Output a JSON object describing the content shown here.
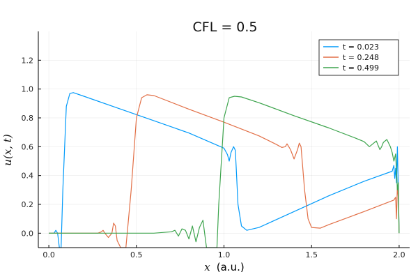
{
  "chart_data": {
    "type": "line",
    "title": "CFL = 0.5",
    "xlabel_var": "x",
    "xlabel_unit": "(a.u.)",
    "ylabel": "u(x, t)",
    "xlim": [
      -0.06,
      2.06
    ],
    "ylim": [
      -0.1,
      1.4
    ],
    "xticks": [
      0.0,
      0.5,
      1.0,
      1.5,
      2.0
    ],
    "xtick_labels": [
      "0.0",
      "0.5",
      "1.0",
      "1.5",
      "2.0"
    ],
    "yticks": [
      0.0,
      0.2,
      0.4,
      0.6,
      0.8,
      1.0,
      1.2
    ],
    "ytick_labels": [
      "0.0",
      "0.2",
      "0.4",
      "0.6",
      "0.8",
      "1.0",
      "1.2"
    ],
    "grid": true,
    "legend_position": "top-right",
    "series": [
      {
        "name": "t = 0.023",
        "color": "#009AFA",
        "x": [
          0.0,
          0.03,
          0.04,
          0.05,
          0.06,
          0.07,
          0.08,
          0.1,
          0.12,
          0.14,
          0.2,
          0.4,
          0.6,
          0.8,
          1.0,
          1.02,
          1.03,
          1.04,
          1.055,
          1.065,
          1.07,
          1.08,
          1.1,
          1.13,
          1.2,
          1.4,
          1.6,
          1.8,
          1.96,
          1.97,
          1.975,
          1.98,
          1.985,
          1.99,
          1.995,
          2.0
        ],
        "y": [
          0.0,
          0.0,
          0.02,
          0.0,
          -0.1,
          -0.1,
          0.3,
          0.88,
          0.97,
          0.975,
          0.95,
          0.865,
          0.78,
          0.695,
          0.59,
          0.545,
          0.5,
          0.56,
          0.6,
          0.575,
          0.45,
          0.2,
          0.05,
          0.02,
          0.04,
          0.15,
          0.26,
          0.36,
          0.43,
          0.47,
          0.38,
          0.45,
          0.35,
          0.6,
          0.3,
          0.0
        ]
      },
      {
        "name": "t = 0.248",
        "color": "#E26F46",
        "x": [
          0.0,
          0.28,
          0.3,
          0.31,
          0.32,
          0.34,
          0.36,
          0.37,
          0.38,
          0.39,
          0.41,
          0.43,
          0.44,
          0.47,
          0.5,
          0.53,
          0.56,
          0.6,
          0.8,
          1.0,
          1.2,
          1.3,
          1.33,
          1.35,
          1.36,
          1.38,
          1.4,
          1.42,
          1.43,
          1.44,
          1.46,
          1.48,
          1.5,
          1.55,
          1.6,
          1.8,
          1.97,
          1.98,
          1.985,
          1.99,
          1.995,
          2.0
        ],
        "y": [
          0.0,
          0.0,
          0.01,
          0.02,
          0.0,
          -0.03,
          0.0,
          0.07,
          0.05,
          -0.05,
          -0.1,
          -0.1,
          -0.1,
          0.3,
          0.8,
          0.94,
          0.96,
          0.955,
          0.86,
          0.77,
          0.675,
          0.615,
          0.595,
          0.6,
          0.62,
          0.58,
          0.515,
          0.58,
          0.625,
          0.6,
          0.3,
          0.1,
          0.04,
          0.035,
          0.06,
          0.15,
          0.23,
          0.25,
          0.1,
          0.33,
          0.25,
          0.0
        ]
      },
      {
        "name": "t = 0.499",
        "color": "#3DA44D",
        "x": [
          0.0,
          0.6,
          0.65,
          0.7,
          0.72,
          0.74,
          0.76,
          0.78,
          0.8,
          0.82,
          0.84,
          0.86,
          0.88,
          0.9,
          0.92,
          0.94,
          0.95,
          0.96,
          0.97,
          1.0,
          1.03,
          1.06,
          1.1,
          1.2,
          1.4,
          1.6,
          1.75,
          1.8,
          1.83,
          1.85,
          1.87,
          1.88,
          1.89,
          1.9,
          1.91,
          1.93,
          1.95,
          1.96,
          1.97,
          1.98,
          1.99,
          1.995,
          2.0
        ],
        "y": [
          0.0,
          0.0,
          0.005,
          0.01,
          0.02,
          -0.02,
          0.03,
          0.02,
          -0.04,
          0.05,
          -0.06,
          0.04,
          0.09,
          -0.1,
          -0.1,
          -0.1,
          -0.1,
          -0.1,
          0.2,
          0.8,
          0.94,
          0.95,
          0.945,
          0.905,
          0.815,
          0.73,
          0.66,
          0.635,
          0.6,
          0.62,
          0.64,
          0.61,
          0.58,
          0.6,
          0.63,
          0.65,
          0.6,
          0.56,
          0.5,
          0.55,
          0.3,
          0.35,
          0.0
        ]
      }
    ]
  }
}
